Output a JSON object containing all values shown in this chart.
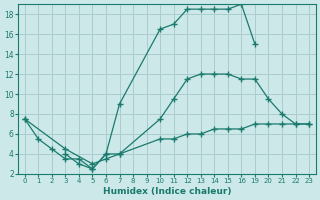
{
  "xlabel": "Humidex (Indice chaleur)",
  "bg_color": "#cce8e8",
  "line_color": "#1a7a6e",
  "grid_color": "#aacccc",
  "ylim": [
    2,
    19
  ],
  "yticks": [
    2,
    4,
    6,
    8,
    10,
    12,
    14,
    16,
    18
  ],
  "xlabels": [
    "0",
    "1",
    "2",
    "3",
    "4",
    "5",
    "6",
    "7",
    "8",
    "9",
    "10",
    "11",
    "12",
    "13",
    "14",
    "15",
    "16",
    "19",
    "20",
    "21",
    "22",
    "23"
  ],
  "line1_x": [
    0,
    1,
    2,
    3,
    4,
    5,
    6,
    7,
    10,
    11,
    12,
    13,
    14,
    15,
    16,
    19
  ],
  "line1_y": [
    7.5,
    5.5,
    4.5,
    3.5,
    3.5,
    2.5,
    4.0,
    9.0,
    16.5,
    17.0,
    18.5,
    18.5,
    18.5,
    18.5,
    19.0,
    15.0
  ],
  "line2_x": [
    3,
    4,
    5,
    6,
    7,
    10,
    11,
    12,
    13,
    14,
    15,
    16,
    19,
    20,
    21,
    22,
    23
  ],
  "line2_y": [
    4.0,
    3.0,
    2.5,
    4.0,
    4.0,
    7.5,
    9.5,
    11.5,
    12.0,
    12.0,
    12.0,
    11.5,
    11.5,
    9.5,
    8.0,
    7.0,
    7.0
  ],
  "line3_x": [
    0,
    3,
    5,
    6,
    7,
    10,
    11,
    12,
    13,
    14,
    15,
    16,
    19,
    20,
    21,
    22,
    23
  ],
  "line3_y": [
    7.5,
    4.5,
    3.0,
    3.5,
    4.0,
    5.5,
    5.5,
    6.0,
    6.0,
    6.5,
    6.5,
    6.5,
    7.0,
    7.0,
    7.0,
    7.0,
    7.0
  ]
}
